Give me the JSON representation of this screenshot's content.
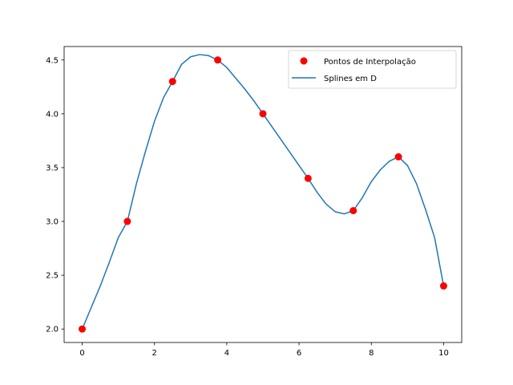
{
  "chart_data": {
    "type": "line",
    "title": "",
    "xlabel": "",
    "ylabel": "",
    "xlim": [
      -0.5,
      10.5
    ],
    "ylim": [
      1.875,
      4.625
    ],
    "xticks": [
      0,
      2,
      4,
      6,
      8,
      10
    ],
    "yticks": [
      2.0,
      2.5,
      3.0,
      3.5,
      4.0,
      4.5
    ],
    "xtick_labels": [
      "0",
      "2",
      "4",
      "6",
      "8",
      "10"
    ],
    "ytick_labels": [
      "2.0",
      "2.5",
      "3.0",
      "3.5",
      "4.0",
      "4.5"
    ],
    "grid": false,
    "legend_position": "top-right",
    "series": [
      {
        "name": "Pontos de Interpolação",
        "kind": "scatter",
        "color": "#ff0000",
        "x": [
          0,
          1.25,
          2.5,
          3.75,
          5,
          6.25,
          7.5,
          8.75,
          10
        ],
        "y": [
          2.0,
          3.0,
          4.3,
          4.5,
          4.0,
          3.4,
          3.1,
          3.6,
          2.4
        ]
      },
      {
        "name": "Splines em D",
        "kind": "line",
        "color": "#1f77b4",
        "x": [
          0,
          0.25,
          0.5,
          0.75,
          1.0,
          1.25,
          1.5,
          1.75,
          2.0,
          2.25,
          2.5,
          2.75,
          3.0,
          3.25,
          3.5,
          3.75,
          4.0,
          4.25,
          4.5,
          4.75,
          5.0,
          5.25,
          5.5,
          5.75,
          6.0,
          6.25,
          6.5,
          6.75,
          7.0,
          7.25,
          7.5,
          7.75,
          8.0,
          8.25,
          8.5,
          8.75,
          9.0,
          9.25,
          9.5,
          9.75,
          10.0
        ],
        "y": [
          2.0,
          2.2,
          2.4,
          2.62,
          2.85,
          3.0,
          3.35,
          3.65,
          3.93,
          4.15,
          4.3,
          4.46,
          4.53,
          4.55,
          4.54,
          4.5,
          4.43,
          4.33,
          4.23,
          4.12,
          4.0,
          3.88,
          3.76,
          3.64,
          3.52,
          3.4,
          3.27,
          3.16,
          3.09,
          3.07,
          3.1,
          3.22,
          3.37,
          3.48,
          3.56,
          3.6,
          3.52,
          3.35,
          3.11,
          2.85,
          2.4
        ]
      }
    ]
  }
}
